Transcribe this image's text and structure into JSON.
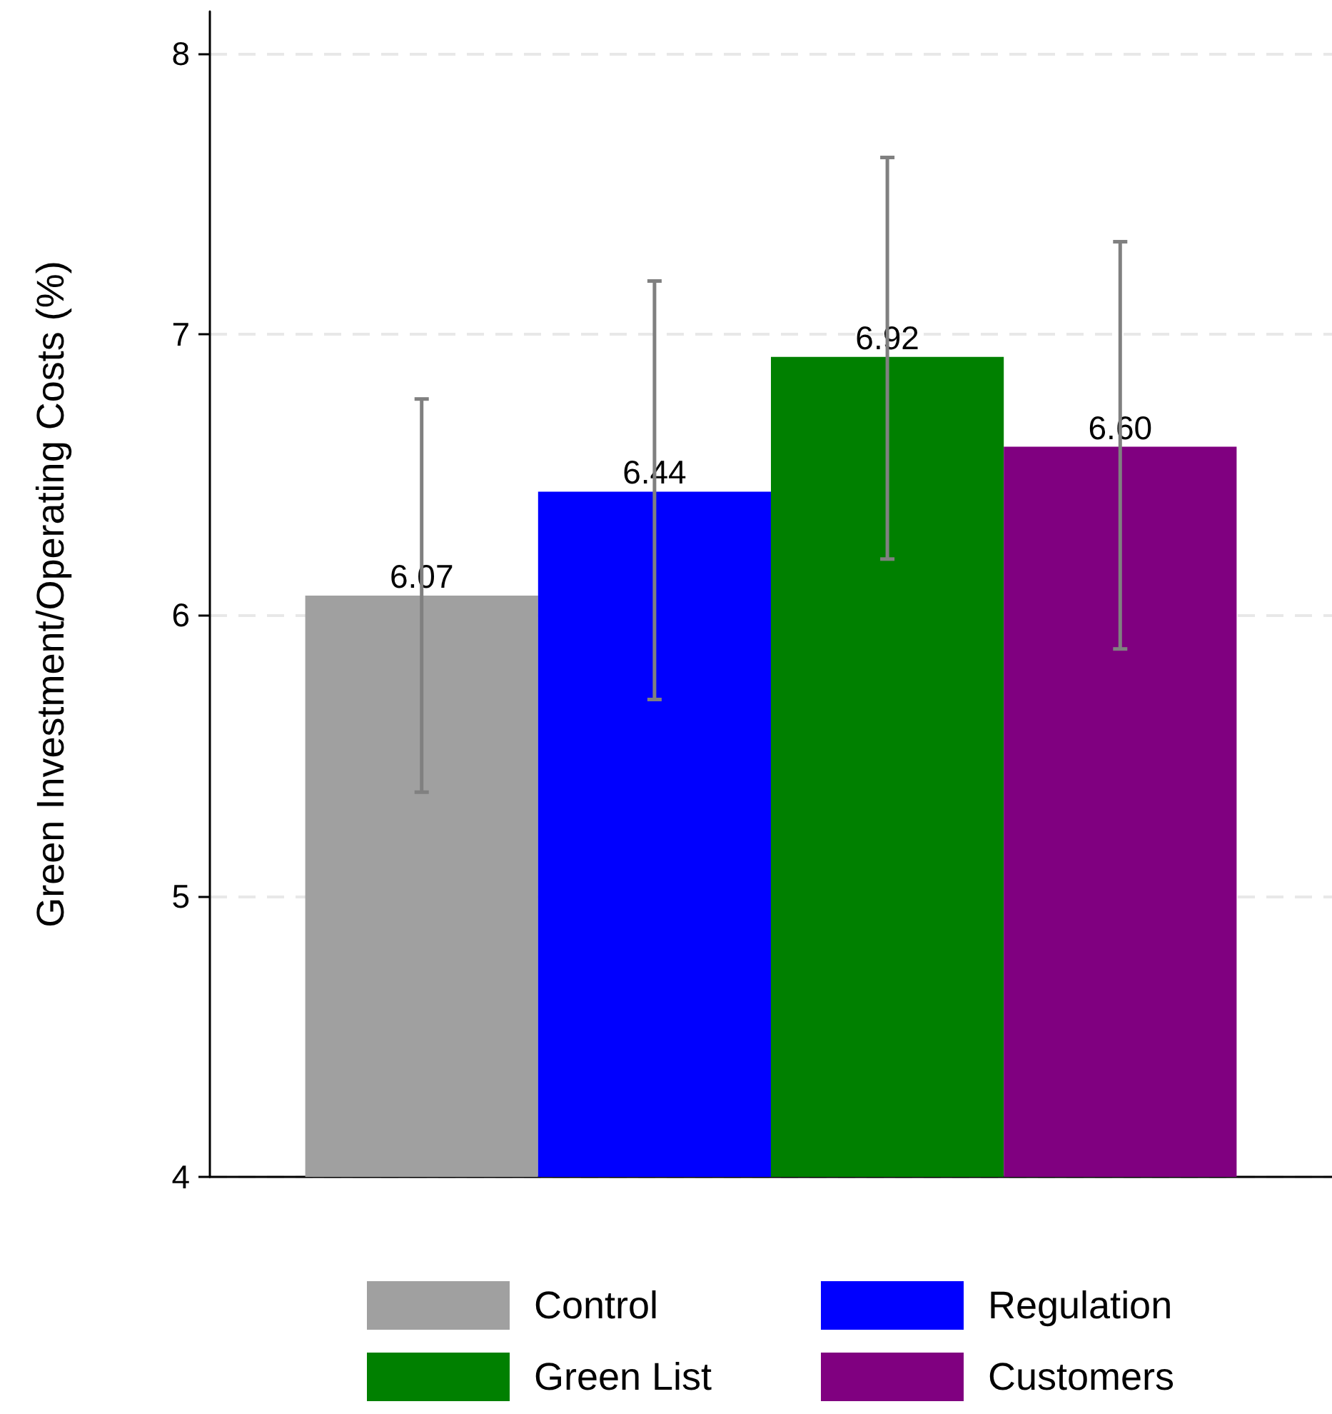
{
  "chart_data": {
    "type": "bar",
    "ylabel": "Green Investment/Operating Costs (%)",
    "categories": [
      null
    ],
    "series": [
      {
        "name": "Control",
        "color": "#a0a0a0",
        "values": [
          6.07
        ],
        "value_labels": [
          "6.07"
        ],
        "errors": [
          [
            5.37,
            6.77
          ]
        ]
      },
      {
        "name": "Regulation",
        "color": "#0000ff",
        "values": [
          6.44
        ],
        "value_labels": [
          "6.44"
        ],
        "errors": [
          [
            5.7,
            7.19
          ]
        ]
      },
      {
        "name": "Green List",
        "color": "#008000",
        "values": [
          6.92
        ],
        "value_labels": [
          "6.92"
        ],
        "errors": [
          [
            6.2,
            7.63
          ]
        ]
      },
      {
        "name": "Customers",
        "color": "#800080",
        "values": [
          6.6
        ],
        "value_labels": [
          "6.60"
        ],
        "errors": [
          [
            5.88,
            7.33
          ]
        ]
      }
    ],
    "ylim": [
      4,
      8.15
    ],
    "yticks": [
      4,
      5,
      6,
      7,
      8
    ],
    "grid": "y",
    "legend": "bottom",
    "tick_labels": "y"
  }
}
